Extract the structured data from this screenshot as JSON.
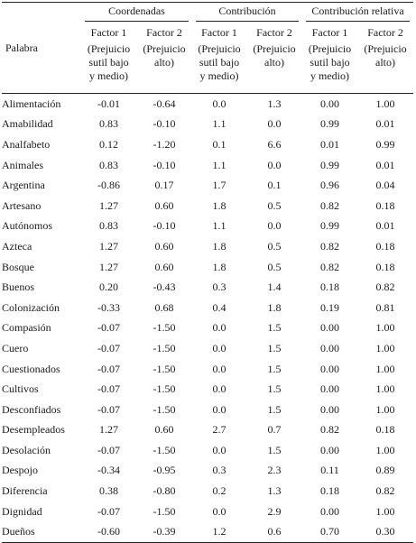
{
  "header": {
    "word_col": "Palabra",
    "groups": [
      "Coordenadas",
      "Contribución",
      "Contribución relativa"
    ],
    "factors": [
      "Factor 1",
      "Factor 2",
      "Factor 1",
      "Factor 2",
      "Factor 1",
      "Factor 2"
    ],
    "notes": [
      [
        "(Prejuicio",
        "sutil bajo",
        "y medio)"
      ],
      [
        "(Prejuicio",
        "alto)",
        ""
      ],
      [
        "(Prejuicio",
        "sutil bajo",
        "y medio)"
      ],
      [
        "(Prejuicio",
        "alto)",
        ""
      ],
      [
        "(Prejuicio",
        "sutil bajo",
        "y medio)"
      ],
      [
        "(Prejuicio",
        "alto)",
        ""
      ]
    ]
  },
  "rows": [
    {
      "word": "Alimentación",
      "c1": "-0.01",
      "c2": "-0.64",
      "k1": "0.0",
      "k2": "1.3",
      "r1": "0.00",
      "r2": "1.00"
    },
    {
      "word": "Amabilidad",
      "c1": "0.83",
      "c2": "-0.10",
      "k1": "1.1",
      "k2": "0.0",
      "r1": "0.99",
      "r2": "0.01"
    },
    {
      "word": "Analfabeto",
      "c1": "0.12",
      "c2": "-1.20",
      "k1": "0.1",
      "k2": "6.6",
      "r1": "0.01",
      "r2": "0.99"
    },
    {
      "word": "Animales",
      "c1": "0.83",
      "c2": "-0.10",
      "k1": "1.1",
      "k2": "0.0",
      "r1": "0.99",
      "r2": "0.01"
    },
    {
      "word": "Argentina",
      "c1": "-0.86",
      "c2": "0.17",
      "k1": "1.7",
      "k2": "0.1",
      "r1": "0.96",
      "r2": "0.04"
    },
    {
      "word": "Artesano",
      "c1": "1.27",
      "c2": "0.60",
      "k1": "1.8",
      "k2": "0.5",
      "r1": "0.82",
      "r2": "0.18"
    },
    {
      "word": "Autónomos",
      "c1": "0.83",
      "c2": "-0.10",
      "k1": "1.1",
      "k2": "0.0",
      "r1": "0.99",
      "r2": "0.01"
    },
    {
      "word": "Azteca",
      "c1": "1.27",
      "c2": "0.60",
      "k1": "1.8",
      "k2": "0.5",
      "r1": "0.82",
      "r2": "0.18"
    },
    {
      "word": "Bosque",
      "c1": "1.27",
      "c2": "0.60",
      "k1": "1.8",
      "k2": "0.5",
      "r1": "0.82",
      "r2": "0.18"
    },
    {
      "word": "Buenos",
      "c1": "0.20",
      "c2": "-0.43",
      "k1": "0.3",
      "k2": "1.4",
      "r1": "0.18",
      "r2": "0.82"
    },
    {
      "word": "Colonización",
      "c1": "-0.33",
      "c2": "0.68",
      "k1": "0.4",
      "k2": "1.8",
      "r1": "0.19",
      "r2": "0.81"
    },
    {
      "word": "Compasión",
      "c1": "-0.07",
      "c2": "-1.50",
      "k1": "0.0",
      "k2": "1.5",
      "r1": "0.00",
      "r2": "1.00"
    },
    {
      "word": "Cuero",
      "c1": "-0.07",
      "c2": "-1.50",
      "k1": "0.0",
      "k2": "1.5",
      "r1": "0.00",
      "r2": "1.00"
    },
    {
      "word": "Cuestionados",
      "c1": "-0.07",
      "c2": "-1.50",
      "k1": "0.0",
      "k2": "1.5",
      "r1": "0.00",
      "r2": "1.00"
    },
    {
      "word": "Cultivos",
      "c1": "-0.07",
      "c2": "-1.50",
      "k1": "0.0",
      "k2": "1.5",
      "r1": "0.00",
      "r2": "1.00"
    },
    {
      "word": "Desconfiados",
      "c1": "-0.07",
      "c2": "-1.50",
      "k1": "0.0",
      "k2": "1.5",
      "r1": "0.00",
      "r2": "1.00"
    },
    {
      "word": "Desempleados",
      "c1": "1.27",
      "c2": "0.60",
      "k1": "2.7",
      "k2": "0.7",
      "r1": "0.82",
      "r2": "0.18"
    },
    {
      "word": "Desolación",
      "c1": "-0.07",
      "c2": "-1.50",
      "k1": "0.0",
      "k2": "1.5",
      "r1": "0.00",
      "r2": "1.00"
    },
    {
      "word": "Despojo",
      "c1": "-0.34",
      "c2": "-0.95",
      "k1": "0.3",
      "k2": "2.3",
      "r1": "0.11",
      "r2": "0.89"
    },
    {
      "word": "Diferencia",
      "c1": "0.38",
      "c2": "-0.80",
      "k1": "0.2",
      "k2": "1.3",
      "r1": "0.18",
      "r2": "0.82"
    },
    {
      "word": "Dignidad",
      "c1": "-0.07",
      "c2": "-1.50",
      "k1": "0.0",
      "k2": "2.9",
      "r1": "0.00",
      "r2": "1.00"
    },
    {
      "word": "Dueños",
      "c1": "-0.60",
      "c2": "-0.39",
      "k1": "1.2",
      "k2": "0.6",
      "r1": "0.70",
      "r2": "0.30"
    }
  ]
}
